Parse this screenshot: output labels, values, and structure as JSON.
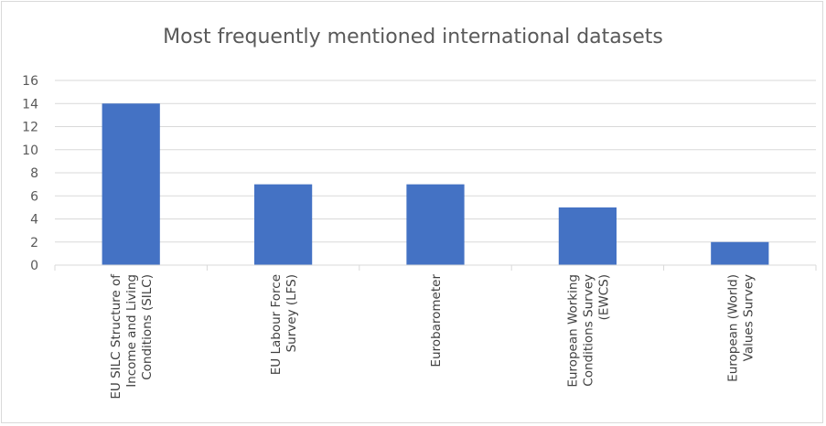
{
  "chart_data": {
    "type": "bar",
    "title": "Most frequently mentioned international datasets",
    "categories": [
      [
        "EU SILC Structure of",
        "Income and Living",
        "Conditions (SILC)"
      ],
      [
        "EU Labour Force",
        "Survey (LFS)"
      ],
      [
        "Eurobarometer"
      ],
      [
        "European Working",
        "Conditions Survey",
        "(EWCS)"
      ],
      [
        "European (World)",
        "Values Survey"
      ]
    ],
    "values": [
      14,
      7,
      7,
      5,
      2
    ],
    "ylim": [
      0,
      16
    ],
    "yticks": [
      0,
      2,
      4,
      6,
      8,
      10,
      12,
      14,
      16
    ],
    "grid": true,
    "bar_color": "#4472c4",
    "grid_color": "#d9d9d9"
  }
}
